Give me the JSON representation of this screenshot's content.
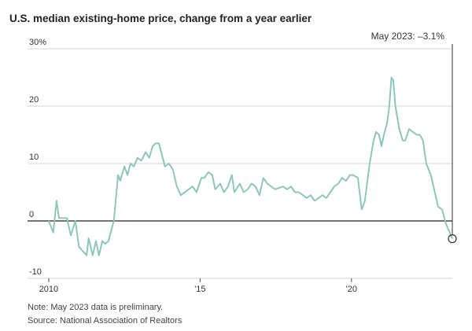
{
  "chart_data": {
    "type": "line",
    "title": "U.S. median existing-home price, change from a year earlier",
    "annotation": "May 2023: –3.1%",
    "notes": [
      "Note: May 2023 data is preliminary.",
      "Source: National Association of Realtors"
    ],
    "color": "#8ec7ba",
    "grid": true,
    "xlim": [
      2009.3,
      2023.33
    ],
    "ylim": [
      -10,
      30
    ],
    "xticks": [
      2010,
      {
        "value": 2015,
        "label": "'15"
      },
      {
        "value": 2020,
        "label": "'20"
      }
    ],
    "yticks": [
      {
        "value": 30,
        "label": "30%"
      },
      20,
      10,
      0,
      -10
    ],
    "x": [
      2010.0,
      2010.15,
      2010.26,
      2010.34,
      2010.6,
      2010.73,
      2010.88,
      2011.0,
      2011.25,
      2011.32,
      2011.45,
      2011.56,
      2011.66,
      2011.77,
      2011.87,
      2011.97,
      2012.15,
      2012.29,
      2012.36,
      2012.5,
      2012.6,
      2012.7,
      2012.81,
      2012.93,
      2013.06,
      2013.2,
      2013.32,
      2013.43,
      2013.53,
      2013.64,
      2013.74,
      2013.84,
      2013.97,
      2014.1,
      2014.23,
      2014.36,
      2014.5,
      2014.62,
      2014.75,
      2014.88,
      2015.04,
      2015.14,
      2015.27,
      2015.4,
      2015.5,
      2015.66,
      2015.79,
      2015.92,
      2016.05,
      2016.13,
      2016.31,
      2016.44,
      2016.57,
      2016.7,
      2016.83,
      2016.96,
      2017.09,
      2017.22,
      2017.35,
      2017.48,
      2017.74,
      2017.87,
      2018.0,
      2018.13,
      2018.26,
      2018.39,
      2018.52,
      2018.65,
      2018.78,
      2018.91,
      2019.04,
      2019.17,
      2019.3,
      2019.43,
      2019.56,
      2019.69,
      2019.82,
      2019.95,
      2020.05,
      2020.21,
      2020.34,
      2020.44,
      2020.6,
      2020.73,
      2020.81,
      2020.91,
      2020.99,
      2021.07,
      2021.17,
      2021.25,
      2021.32,
      2021.38,
      2021.45,
      2021.58,
      2021.69,
      2021.77,
      2021.9,
      2022.03,
      2022.16,
      2022.26,
      2022.36,
      2022.47,
      2022.62,
      2022.73,
      2022.86,
      2022.99,
      2023.12,
      2023.33
    ],
    "values": [
      0,
      -2,
      3.5,
      0.5,
      0.5,
      -2.5,
      0,
      -4.5,
      -6,
      -3,
      -6,
      -3.5,
      -6,
      -3.5,
      -4,
      -3.5,
      0,
      8,
      7,
      9.5,
      8,
      10,
      9.5,
      11,
      10.5,
      12,
      11,
      13,
      13.5,
      13.5,
      11.5,
      9.5,
      10,
      9,
      6,
      4.5,
      5,
      5.5,
      6,
      5,
      7.5,
      7.5,
      8.5,
      8,
      5.5,
      6.5,
      5,
      6,
      8,
      5,
      6.5,
      5,
      5.5,
      6.5,
      6,
      4.5,
      7.5,
      6.5,
      6,
      5.5,
      6,
      5.5,
      6,
      5,
      5,
      4.5,
      4,
      4.5,
      3.5,
      4,
      4.5,
      4,
      5,
      6,
      6.5,
      7.5,
      7,
      8,
      8,
      7.5,
      2,
      3.5,
      10,
      14,
      15.5,
      15,
      13,
      15,
      17,
      20,
      25,
      24.5,
      20,
      16,
      14,
      14,
      16,
      15.5,
      15,
      15,
      14,
      10,
      8,
      5.5,
      2.5,
      2,
      -0.5,
      -3.1
    ]
  }
}
